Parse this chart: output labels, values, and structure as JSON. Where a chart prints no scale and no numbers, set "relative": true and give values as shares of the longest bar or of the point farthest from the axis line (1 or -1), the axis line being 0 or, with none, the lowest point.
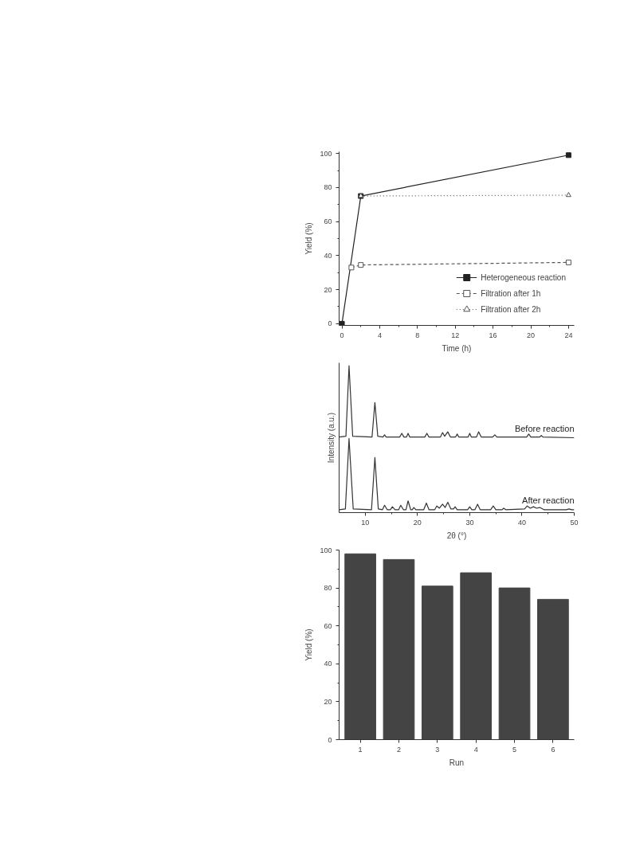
{
  "chart_data": [
    {
      "type": "line",
      "xlabel": "Time (h)",
      "ylabel": "Yield (%)",
      "xlim": [
        -0.3,
        24.6
      ],
      "ylim": [
        -1,
        101
      ],
      "xticks": [
        0,
        4,
        8,
        12,
        16,
        20,
        24
      ],
      "yticks": [
        0,
        20,
        40,
        60,
        80,
        100
      ],
      "grid": false,
      "legend": "bottom right",
      "series": [
        {
          "name": "Heterogeneous reaction",
          "color": "#222222",
          "x": [
            0,
            2,
            24
          ],
          "values": [
            0,
            75,
            99
          ],
          "marker": "square",
          "line_style": "solid"
        },
        {
          "name": "Filtration after 1h",
          "color": "#555555",
          "x": [
            1,
            2,
            24
          ],
          "values": [
            33,
            34.5,
            36
          ],
          "marker": "square",
          "line_style": "dashed"
        },
        {
          "name": "Filtration after 2h",
          "color": "#555555",
          "x": [
            2,
            24
          ],
          "values": [
            75,
            75.5
          ],
          "marker": "triangle",
          "line_style": "dotted"
        }
      ]
    },
    {
      "type": "line",
      "relative": true,
      "xlabel": "2θ (°)",
      "ylabel": "Intensity (a.u.)",
      "xlim": [
        5,
        50
      ],
      "xticks": [
        10,
        20,
        30,
        40,
        50
      ],
      "grid": false,
      "legend": false,
      "tick_labels": "x",
      "series": [
        {
          "name": "Before reaction",
          "color": "#333333",
          "x": [
            5,
            6.3,
            6.9,
            7.6,
            11.3,
            11.85,
            12.4,
            13.4,
            13.7,
            14.0,
            16.6,
            17.0,
            17.4,
            17.9,
            18.2,
            18.5,
            21.4,
            21.8,
            22.2,
            24.4,
            24.8,
            25.2,
            25.8,
            26.3,
            27.3,
            27.6,
            27.9,
            29.7,
            30.0,
            30.3,
            31.3,
            31.7,
            32.2,
            34.4,
            34.8,
            35.2,
            40.9,
            41.3,
            41.7,
            43.4,
            43.7,
            44.0,
            50
          ],
          "values": [
            0.515,
            0.52,
            1.0,
            0.52,
            0.515,
            0.75,
            0.52,
            0.515,
            0.53,
            0.515,
            0.515,
            0.54,
            0.515,
            0.515,
            0.54,
            0.515,
            0.515,
            0.54,
            0.515,
            0.515,
            0.545,
            0.52,
            0.55,
            0.515,
            0.515,
            0.535,
            0.515,
            0.515,
            0.54,
            0.515,
            0.515,
            0.55,
            0.515,
            0.515,
            0.53,
            0.515,
            0.515,
            0.535,
            0.515,
            0.515,
            0.525,
            0.515,
            0.51
          ]
        },
        {
          "name": "After reaction",
          "color": "#333333",
          "x": [
            5,
            6.2,
            6.9,
            7.7,
            11.2,
            11.85,
            12.5,
            13.3,
            13.7,
            14.2,
            14.8,
            15.2,
            15.7,
            16.4,
            16.8,
            17.3,
            17.8,
            18.2,
            18.7,
            19.0,
            19.3,
            19.7,
            21.2,
            21.7,
            22.2,
            23.3,
            23.7,
            24.2,
            24.8,
            25.3,
            25.8,
            26.4,
            26.9,
            27.2,
            27.6,
            29.6,
            30.0,
            30.4,
            31.0,
            31.5,
            32.0,
            34.0,
            34.5,
            35.0,
            36.2,
            36.5,
            36.9,
            40.5,
            41.0,
            41.6,
            42.2,
            42.8,
            43.4,
            44.2,
            48.5,
            49.0,
            49.5,
            50
          ],
          "values": [
            0.02,
            0.025,
            0.505,
            0.025,
            0.02,
            0.375,
            0.025,
            0.02,
            0.05,
            0.02,
            0.02,
            0.04,
            0.02,
            0.02,
            0.05,
            0.02,
            0.02,
            0.08,
            0.02,
            0.02,
            0.035,
            0.02,
            0.02,
            0.065,
            0.02,
            0.02,
            0.045,
            0.03,
            0.057,
            0.035,
            0.07,
            0.025,
            0.025,
            0.04,
            0.02,
            0.02,
            0.04,
            0.02,
            0.02,
            0.057,
            0.02,
            0.02,
            0.045,
            0.02,
            0.02,
            0.03,
            0.02,
            0.025,
            0.045,
            0.03,
            0.04,
            0.03,
            0.035,
            0.02,
            0.02,
            0.025,
            0.02,
            0.02
          ]
        }
      ]
    },
    {
      "type": "bar",
      "xlabel": "Run",
      "ylabel": "Yield (%)",
      "categories": [
        "1",
        "2",
        "3",
        "4",
        "5",
        "6"
      ],
      "values": [
        98,
        95,
        81,
        88,
        80,
        74
      ],
      "color": "#444444",
      "ylim": [
        0,
        100
      ],
      "yticks": [
        0,
        20,
        40,
        60,
        80,
        100
      ],
      "grid": false
    }
  ]
}
